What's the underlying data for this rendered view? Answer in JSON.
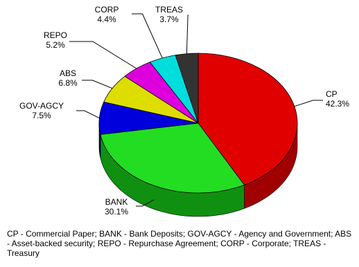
{
  "chart_data": {
    "type": "pie",
    "style": "3d",
    "start": "top",
    "direction": "clockwise",
    "slices": [
      {
        "label": "CP",
        "value": 42.3,
        "pct_text": "42.3%",
        "color": "#e00000",
        "side_color": "#a00000"
      },
      {
        "label": "BANK",
        "value": 30.1,
        "pct_text": "30.1%",
        "color": "#22dd22",
        "side_color": "#109010"
      },
      {
        "label": "GOV-AGCY",
        "value": 7.5,
        "pct_text": "7.5%",
        "color": "#0000dd",
        "side_color": "#000090"
      },
      {
        "label": "ABS",
        "value": 6.8,
        "pct_text": "6.8%",
        "color": "#dddd00",
        "side_color": "#9a9a00"
      },
      {
        "label": "REPO",
        "value": 5.2,
        "pct_text": "5.2%",
        "color": "#dd00dd",
        "side_color": "#900090"
      },
      {
        "label": "CORP",
        "value": 4.4,
        "pct_text": "4.4%",
        "color": "#00dddd",
        "side_color": "#009090"
      },
      {
        "label": "TREAS",
        "value": 3.7,
        "pct_text": "3.7%",
        "color": "#333333",
        "side_color": "#1a1a1a"
      }
    ]
  },
  "footnote": "CP - Commercial Paper; BANK - Bank Deposits; GOV-AGCY - Agency and Government; ABS - Asset-backed security; REPO - Repurchase Agreement; CORP - Corporate; TREAS - Treasury"
}
